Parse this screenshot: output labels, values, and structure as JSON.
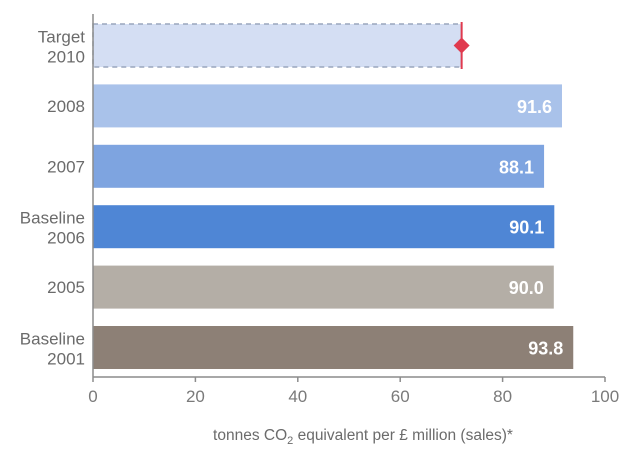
{
  "chart_data": {
    "type": "bar",
    "orientation": "horizontal",
    "categories": [
      [
        "Target",
        "2010"
      ],
      [
        "2008"
      ],
      [
        "2007"
      ],
      [
        "Baseline",
        "2006"
      ],
      [
        "2005"
      ],
      [
        "Baseline",
        "2001"
      ]
    ],
    "values": [
      72,
      91.6,
      88.1,
      90.1,
      90.0,
      93.8
    ],
    "value_labels": [
      "",
      "91.6",
      "88.1",
      "90.1",
      "90.0",
      "93.8"
    ],
    "bar_colors": [
      "#d4def3",
      "#a9c2ea",
      "#7ea4e0",
      "#4f86d5",
      "#b4aea6",
      "#8d8076"
    ],
    "target_marker": {
      "category_index": 0,
      "value": 72,
      "color": "#e03a4e"
    },
    "xlim": [
      0,
      100
    ],
    "xticks": [
      0,
      20,
      40,
      60,
      80,
      100
    ],
    "xlabel_parts": {
      "before": "tonnes CO",
      "sub": "2",
      "after": " equivalent per £ million (sales)*"
    },
    "grid": false
  }
}
